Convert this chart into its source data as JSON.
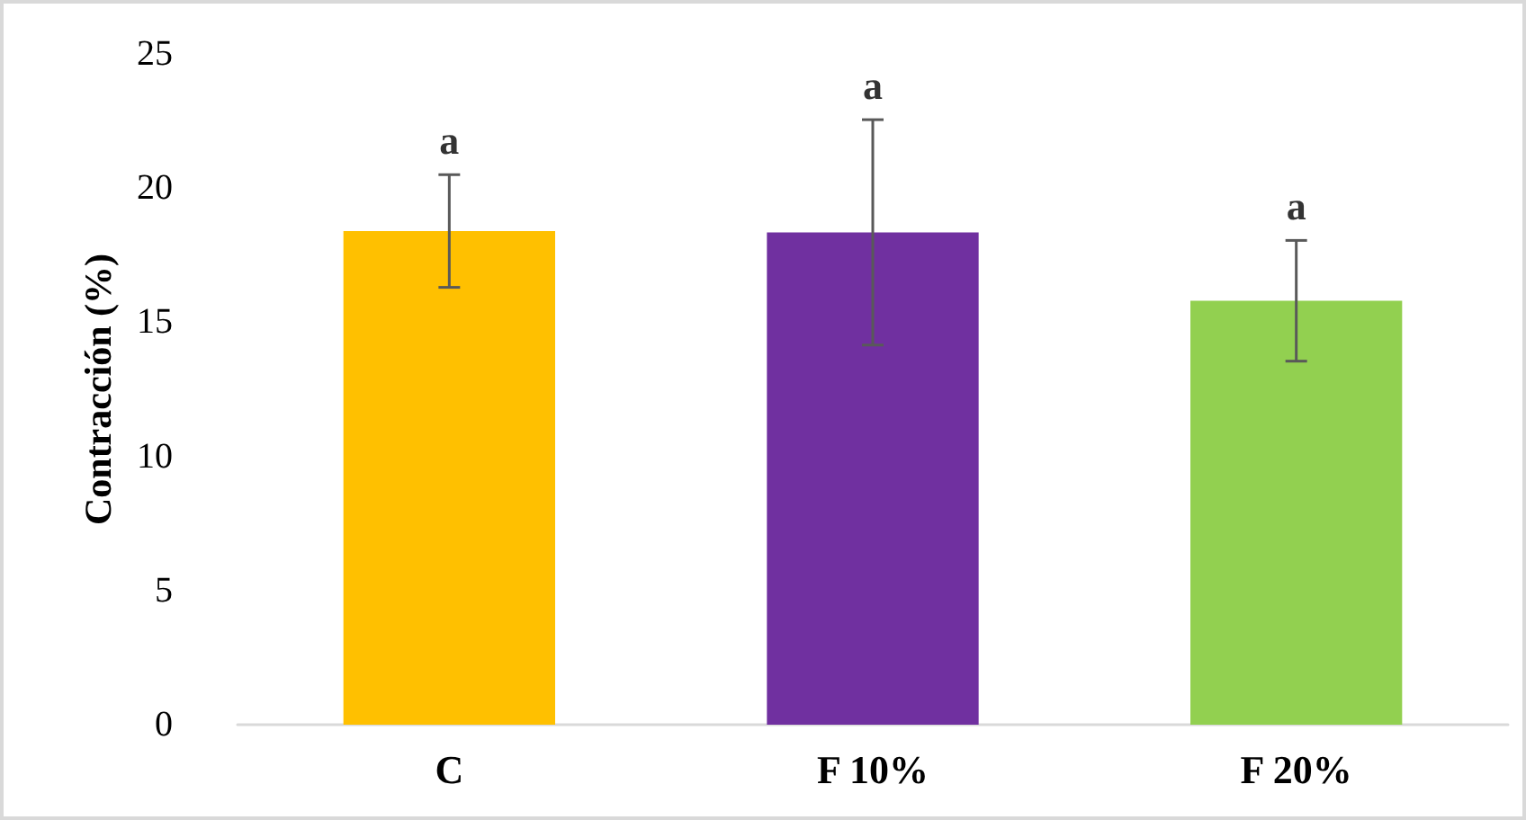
{
  "chart_data": {
    "type": "bar",
    "ylabel": "Contracción (%)",
    "categories": [
      "C",
      "F 10%",
      "F 20%"
    ],
    "values": [
      18.4,
      18.35,
      15.8
    ],
    "colors": [
      "#ffc000",
      "#7030a0",
      "#92d050"
    ],
    "errors": [
      2.1,
      4.2,
      2.25
    ],
    "ylim": [
      0,
      25
    ],
    "yticks": [
      0,
      5,
      10,
      15,
      20,
      25
    ],
    "grid": false,
    "annotations": [
      "a",
      "a",
      "a"
    ]
  }
}
